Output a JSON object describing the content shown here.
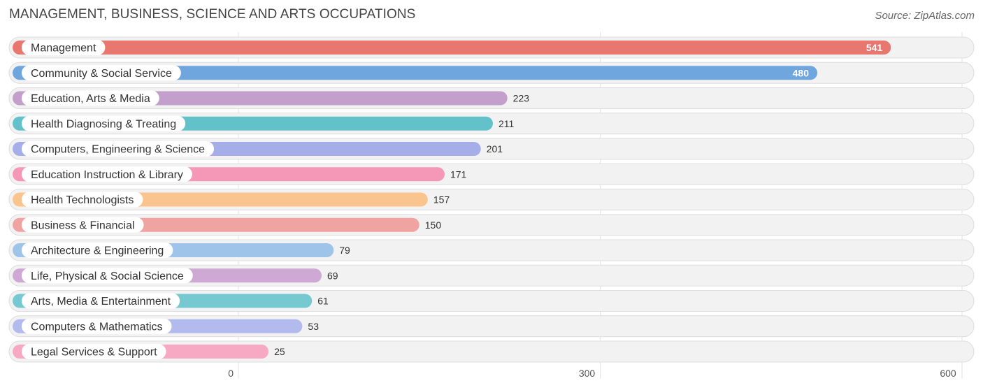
{
  "title": "MANAGEMENT, BUSINESS, SCIENCE AND ARTS OCCUPATIONS",
  "source": "Source: ZipAtlas.com",
  "chart_data": {
    "type": "bar",
    "orientation": "horizontal",
    "title": "MANAGEMENT, BUSINESS, SCIENCE AND ARTS OCCUPATIONS",
    "xlabel": "",
    "ylabel": "",
    "xlim": [
      0,
      600
    ],
    "x_ticks": [
      0,
      300,
      600
    ],
    "x_tick_labels": [
      "0",
      "300",
      "600"
    ],
    "grid": true,
    "categories": [
      "Management",
      "Community & Social Service",
      "Education, Arts & Media",
      "Health Diagnosing & Treating",
      "Computers, Engineering & Science",
      "Education Instruction & Library",
      "Health Technologists",
      "Business & Financial",
      "Architecture & Engineering",
      "Life, Physical & Social Science",
      "Arts, Media & Entertainment",
      "Computers & Mathematics",
      "Legal Services & Support"
    ],
    "values": [
      541,
      480,
      223,
      211,
      201,
      171,
      157,
      150,
      79,
      69,
      61,
      53,
      25
    ],
    "value_labels": [
      "541",
      "480",
      "223",
      "211",
      "201",
      "171",
      "157",
      "150",
      "79",
      "69",
      "61",
      "53",
      "25"
    ],
    "colors": [
      "#e8776f",
      "#6fa6de",
      "#c39fcc",
      "#63c1c9",
      "#a6aee9",
      "#f598b7",
      "#f9c48e",
      "#efa4a1",
      "#9fc4ea",
      "#cda9d3",
      "#76c9d0",
      "#b3bbee",
      "#f7a9c4"
    ]
  }
}
